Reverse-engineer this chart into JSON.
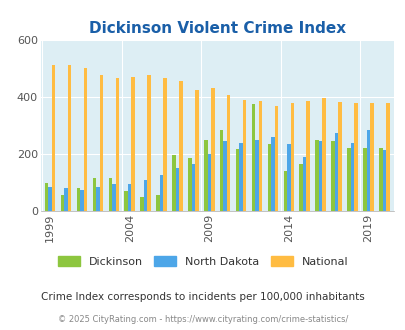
{
  "title": "Dickinson Violent Crime Index",
  "years": [
    1999,
    2000,
    2001,
    2002,
    2003,
    2004,
    2005,
    2006,
    2007,
    2008,
    2009,
    2010,
    2011,
    2012,
    2013,
    2014,
    2015,
    2016,
    2017,
    2018,
    2019,
    2020
  ],
  "dickinson": [
    100,
    55,
    80,
    115,
    115,
    70,
    50,
    55,
    195,
    185,
    250,
    285,
    218,
    375,
    235,
    140,
    165,
    250,
    245,
    220,
    220,
    220
  ],
  "north_dakota": [
    85,
    80,
    75,
    85,
    95,
    95,
    110,
    125,
    150,
    165,
    200,
    245,
    240,
    250,
    260,
    235,
    190,
    245,
    275,
    240,
    285,
    215
  ],
  "national": [
    510,
    510,
    500,
    475,
    465,
    470,
    475,
    465,
    455,
    425,
    430,
    405,
    390,
    385,
    368,
    380,
    385,
    395,
    383,
    380,
    380,
    380
  ],
  "dickinson_color": "#8dc63f",
  "nd_color": "#4da6e8",
  "national_color": "#ffbc42",
  "fig_bg": "#ffffff",
  "plot_bg": "#ddeef4",
  "ylim": [
    0,
    600
  ],
  "yticks": [
    0,
    200,
    400,
    600
  ],
  "subtitle": "Crime Index corresponds to incidents per 100,000 inhabitants",
  "footer": "© 2025 CityRating.com - https://www.cityrating.com/crime-statistics/",
  "title_color": "#1a5fa8",
  "subtitle_color": "#333333",
  "footer_color": "#888888",
  "legend_labels": [
    "Dickinson",
    "North Dakota",
    "National"
  ],
  "tick_years": [
    1999,
    2004,
    2009,
    2014,
    2019
  ]
}
